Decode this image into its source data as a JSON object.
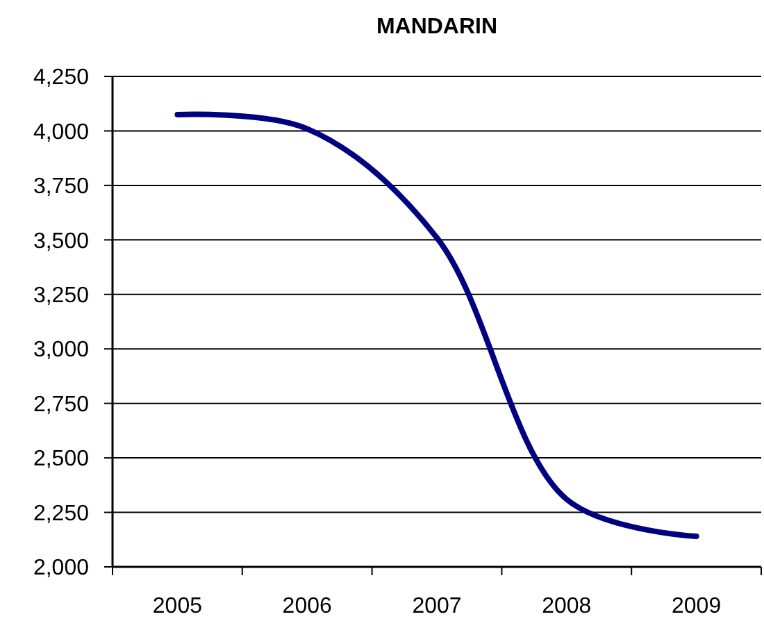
{
  "chart_data": {
    "type": "line",
    "title": "MANDARIN",
    "categories": [
      "2005",
      "2006",
      "2007",
      "2008",
      "2009"
    ],
    "series": [
      {
        "color": "#000080",
        "values": [
          4075,
          4010,
          3510,
          2310,
          2140
        ]
      }
    ],
    "ylim": [
      2000,
      4250
    ],
    "yticks": [
      {
        "value": 2000,
        "label": "2,000"
      },
      {
        "value": 2250,
        "label": "2,250"
      },
      {
        "value": 2500,
        "label": "2,500"
      },
      {
        "value": 2750,
        "label": "2,750"
      },
      {
        "value": 3000,
        "label": "3,000"
      },
      {
        "value": 3250,
        "label": "3,250"
      },
      {
        "value": 3500,
        "label": "3,500"
      },
      {
        "value": 3750,
        "label": "3,750"
      },
      {
        "value": 4000,
        "label": "4,000"
      },
      {
        "value": 4250,
        "label": "4,250"
      }
    ],
    "grid": "y",
    "marker": "none",
    "line_style": "solid"
  }
}
